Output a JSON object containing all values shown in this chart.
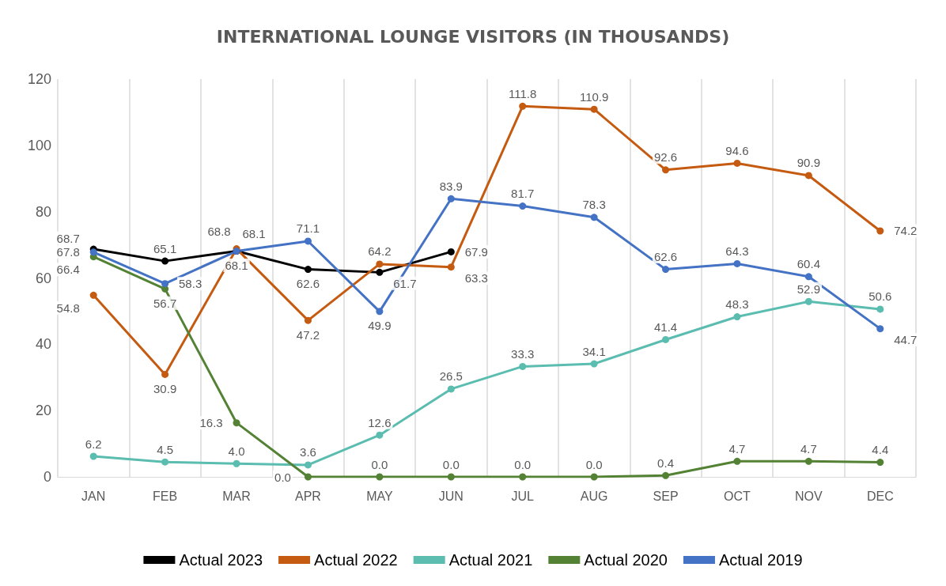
{
  "chart_data": {
    "type": "line",
    "title": "INTERNATIONAL LOUNGE VISITORS (IN THOUSANDS)",
    "categories": [
      "JAN",
      "FEB",
      "MAR",
      "APR",
      "MAY",
      "JUN",
      "JUL",
      "AUG",
      "SEP",
      "OCT",
      "NOV",
      "DEC"
    ],
    "series": [
      {
        "name": "Actual 2023",
        "color": "#000000",
        "values": [
          68.7,
          65.1,
          68.1,
          62.6,
          61.7,
          67.9,
          null,
          null,
          null,
          null,
          null,
          null
        ],
        "value_labels": [
          "68.7",
          "65.1",
          "68.1",
          "62.6",
          "61.7",
          "67.9",
          null,
          null,
          null,
          null,
          null,
          null
        ]
      },
      {
        "name": "Actual 2022",
        "color": "#c55a11",
        "values": [
          54.8,
          30.9,
          68.8,
          47.2,
          64.2,
          63.3,
          111.8,
          110.9,
          92.6,
          94.6,
          90.9,
          74.2
        ],
        "value_labels": [
          "54.8",
          "30.9",
          "68.8",
          "47.2",
          "64.2",
          "63.3",
          "111.8",
          "110.9",
          "92.6",
          "94.6",
          "90.9",
          "74.2"
        ]
      },
      {
        "name": "Actual 2021",
        "color": "#5bbcb0",
        "values": [
          6.2,
          4.5,
          4.0,
          3.6,
          12.6,
          26.5,
          33.3,
          34.1,
          41.4,
          48.3,
          52.9,
          50.6
        ],
        "value_labels": [
          "6.2",
          "4.5",
          "4.0",
          "3.6",
          "12.6",
          "26.5",
          "33.3",
          "34.1",
          "41.4",
          "48.3",
          "52.9",
          "50.6"
        ]
      },
      {
        "name": "Actual 2020",
        "color": "#548235",
        "values": [
          66.4,
          56.7,
          16.3,
          0.0,
          0.0,
          0.0,
          0.0,
          0.0,
          0.4,
          4.7,
          4.7,
          4.4
        ],
        "value_labels": [
          "66.4",
          "56.7",
          "16.3",
          "0.0",
          "0.0",
          "0.0",
          "0.0",
          "0.0",
          "0.4",
          "4.7",
          "4.7",
          "4.4"
        ]
      },
      {
        "name": "Actual 2019",
        "color": "#4472c4",
        "values": [
          67.8,
          58.3,
          68.1,
          71.1,
          49.9,
          83.9,
          81.7,
          78.3,
          62.6,
          64.3,
          60.4,
          44.7
        ],
        "value_labels": [
          "67.8",
          "58.3",
          "68.1",
          "71.1",
          "49.9",
          "83.9",
          "81.7",
          "78.3",
          "62.6",
          "64.3",
          "60.4",
          "44.7"
        ]
      }
    ],
    "ylim": [
      0,
      120
    ],
    "yticks": [
      0,
      20,
      40,
      60,
      80,
      100,
      120
    ],
    "grid": "x",
    "legend": "bottom",
    "marker": "circle"
  }
}
